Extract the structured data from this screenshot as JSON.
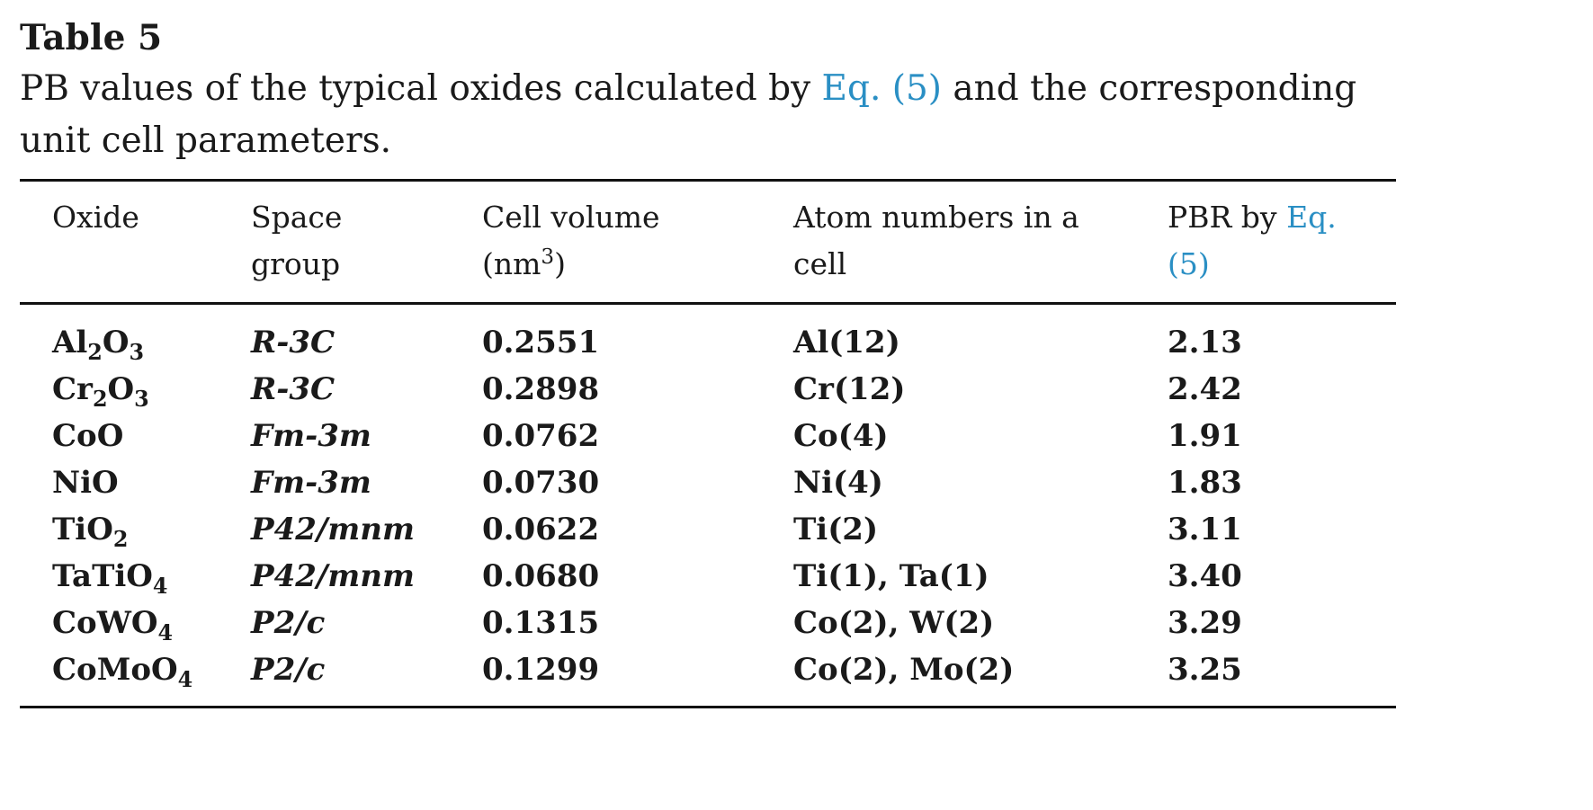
{
  "table": {
    "label": "Table 5",
    "caption": {
      "before": "PB values of the typical oxides calculated by ",
      "link": "Eq. (5)",
      "after": " and the corresponding unit cell parameters."
    },
    "columns": {
      "oxide": "Oxide",
      "space_group": "Space group",
      "cell_volume": {
        "text": "Cell volume (nm",
        "sup": "3",
        "close": ")"
      },
      "atom_numbers": "Atom numbers in a cell",
      "pbr": {
        "text": "PBR by ",
        "link": "Eq. (5)"
      }
    },
    "rows": [
      {
        "oxide": {
          "parts": [
            "Al",
            "2",
            "O",
            "3"
          ]
        },
        "space_group": "R-3C",
        "cell_volume": "0.2551",
        "atoms": "Al(12)",
        "pbr": "2.13"
      },
      {
        "oxide": {
          "parts": [
            "Cr",
            "2",
            "O",
            "3"
          ]
        },
        "space_group": "R-3C",
        "cell_volume": "0.2898",
        "atoms": "Cr(12)",
        "pbr": "2.42"
      },
      {
        "oxide": {
          "parts": [
            "CoO"
          ]
        },
        "space_group": "Fm-3m",
        "cell_volume": "0.0762",
        "atoms": "Co(4)",
        "pbr": "1.91"
      },
      {
        "oxide": {
          "parts": [
            "NiO"
          ]
        },
        "space_group": "Fm-3m",
        "cell_volume": "0.0730",
        "atoms": "Ni(4)",
        "pbr": "1.83"
      },
      {
        "oxide": {
          "parts": [
            "TiO",
            "2"
          ]
        },
        "space_group": "P42/mnm",
        "cell_volume": "0.0622",
        "atoms": "Ti(2)",
        "pbr": "3.11"
      },
      {
        "oxide": {
          "parts": [
            "TaTiO",
            "4"
          ]
        },
        "space_group": "P42/mnm",
        "cell_volume": "0.0680",
        "atoms": "Ti(1), Ta(1)",
        "pbr": "3.40"
      },
      {
        "oxide": {
          "parts": [
            "CoWO",
            "4"
          ]
        },
        "space_group": "P2/c",
        "cell_volume": "0.1315",
        "atoms": "Co(2), W(2)",
        "pbr": "3.29"
      },
      {
        "oxide": {
          "parts": [
            "CoMoO",
            "4"
          ]
        },
        "space_group": "P2/c",
        "cell_volume": "0.1299",
        "atoms": "Co(2), Mo(2)",
        "pbr": "3.25"
      }
    ]
  }
}
